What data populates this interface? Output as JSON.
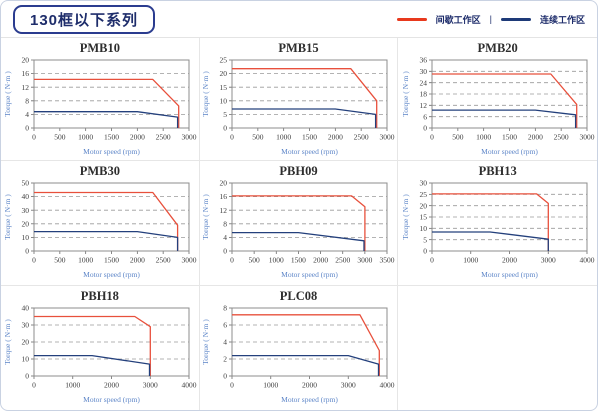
{
  "page": {
    "title_badge": "130框以下系列",
    "legend": [
      {
        "label": "间歇工作区",
        "color": "#e8391d"
      },
      {
        "label": "连续工作区",
        "color": "#1e3a78"
      }
    ],
    "legend_separator": "|"
  },
  "chart_data": [
    {
      "type": "line",
      "title": "PMB10",
      "xlabel": "Motor speed (rpm)",
      "ylabel": "Torque ( N·m )",
      "xlim": [
        0,
        3000
      ],
      "xstep": 500,
      "ylim": [
        0,
        20
      ],
      "ystep": 4,
      "grid": "dashed-horizontal",
      "legend_position": "none",
      "series": [
        {
          "name": "间歇工作区",
          "color": "#e8503c",
          "points": [
            [
              0,
              14.3
            ],
            [
              2300,
              14.3
            ],
            [
              2800,
              6.5
            ],
            [
              2800,
              0
            ]
          ]
        },
        {
          "name": "连续工作区",
          "color": "#24407c",
          "points": [
            [
              0,
              4.8
            ],
            [
              2000,
              4.8
            ],
            [
              2780,
              3.2
            ],
            [
              2780,
              0
            ]
          ]
        }
      ]
    },
    {
      "type": "line",
      "title": "PMB15",
      "xlabel": "Motor speed (rpm)",
      "ylabel": "Torque ( N·m )",
      "xlim": [
        0,
        3000
      ],
      "xstep": 500,
      "ylim": [
        0,
        25
      ],
      "ystep": 5,
      "grid": "dashed-horizontal",
      "legend_position": "none",
      "series": [
        {
          "name": "间歇工作区",
          "color": "#e8503c",
          "points": [
            [
              0,
              21.8
            ],
            [
              2300,
              21.8
            ],
            [
              2800,
              10
            ],
            [
              2800,
              0
            ]
          ]
        },
        {
          "name": "连续工作区",
          "color": "#24407c",
          "points": [
            [
              0,
              7
            ],
            [
              2000,
              7
            ],
            [
              2780,
              5
            ],
            [
              2780,
              0
            ]
          ]
        }
      ]
    },
    {
      "type": "line",
      "title": "PMB20",
      "xlabel": "Motor speed (rpm)",
      "ylabel": "Torque ( N·m )",
      "xlim": [
        0,
        3000
      ],
      "xstep": 500,
      "ylim": [
        0,
        36
      ],
      "ystep": 6,
      "grid": "dashed-horizontal",
      "legend_position": "none",
      "series": [
        {
          "name": "间歇工作区",
          "color": "#e8503c",
          "points": [
            [
              0,
              28.6
            ],
            [
              2300,
              28.6
            ],
            [
              2800,
              12.5
            ],
            [
              2800,
              0
            ]
          ]
        },
        {
          "name": "连续工作区",
          "color": "#24407c",
          "points": [
            [
              0,
              9.5
            ],
            [
              2000,
              9.5
            ],
            [
              2780,
              7
            ],
            [
              2780,
              0
            ]
          ]
        }
      ]
    },
    {
      "type": "line",
      "title": "PMB30",
      "xlabel": "Motor speed (rpm)",
      "ylabel": "Torque ( N·m )",
      "xlim": [
        0,
        3000
      ],
      "xstep": 500,
      "ylim": [
        0,
        50
      ],
      "ystep": 10,
      "grid": "dashed-horizontal",
      "legend_position": "none",
      "series": [
        {
          "name": "间歇工作区",
          "color": "#e8503c",
          "points": [
            [
              0,
              43
            ],
            [
              2300,
              43
            ],
            [
              2780,
              19
            ],
            [
              2780,
              0
            ]
          ]
        },
        {
          "name": "连续工作区",
          "color": "#24407c",
          "points": [
            [
              0,
              14.3
            ],
            [
              2000,
              14.3
            ],
            [
              2780,
              10
            ],
            [
              2780,
              0
            ]
          ]
        }
      ]
    },
    {
      "type": "line",
      "title": "PBH09",
      "xlabel": "Motor speed (rpm)",
      "ylabel": "Torque ( N·m )",
      "xlim": [
        0,
        3500
      ],
      "xstep": 500,
      "ylim": [
        0,
        20
      ],
      "ystep": 4,
      "grid": "dashed-horizontal",
      "legend_position": "none",
      "series": [
        {
          "name": "间歇工作区",
          "color": "#e8503c",
          "points": [
            [
              0,
              16.2
            ],
            [
              2700,
              16.2
            ],
            [
              3000,
              13
            ],
            [
              3000,
              0
            ]
          ]
        },
        {
          "name": "连续工作区",
          "color": "#24407c",
          "points": [
            [
              0,
              5.4
            ],
            [
              1500,
              5.4
            ],
            [
              2980,
              3
            ],
            [
              2980,
              0
            ]
          ]
        }
      ]
    },
    {
      "type": "line",
      "title": "PBH13",
      "xlabel": "Motor speed (rpm)",
      "ylabel": "Torque ( N·m )",
      "xlim": [
        0,
        4000
      ],
      "xstep": 1000,
      "ylim": [
        0,
        30
      ],
      "ystep": 5,
      "grid": "dashed-horizontal",
      "legend_position": "none",
      "series": [
        {
          "name": "间歇工作区",
          "color": "#e8503c",
          "points": [
            [
              0,
              25.2
            ],
            [
              2700,
              25.2
            ],
            [
              3000,
              21
            ],
            [
              3000,
              0
            ]
          ]
        },
        {
          "name": "连续工作区",
          "color": "#24407c",
          "points": [
            [
              0,
              8.4
            ],
            [
              1500,
              8.4
            ],
            [
              3000,
              5.2
            ],
            [
              3000,
              0
            ]
          ]
        }
      ]
    },
    {
      "type": "line",
      "title": "PBH18",
      "xlabel": "Motor speed (rpm)",
      "ylabel": "Torque ( N·m )",
      "xlim": [
        0,
        4000
      ],
      "xstep": 1000,
      "ylim": [
        0,
        40
      ],
      "ystep": 10,
      "grid": "dashed-horizontal",
      "legend_position": "none",
      "series": [
        {
          "name": "间歇工作区",
          "color": "#e8503c",
          "points": [
            [
              0,
              35
            ],
            [
              2600,
              35
            ],
            [
              3000,
              29
            ],
            [
              3000,
              0
            ]
          ]
        },
        {
          "name": "连续工作区",
          "color": "#24407c",
          "points": [
            [
              0,
              12
            ],
            [
              1500,
              12
            ],
            [
              2980,
              7
            ],
            [
              2980,
              0
            ]
          ]
        }
      ]
    },
    {
      "type": "line",
      "title": "PLC08",
      "xlabel": "Motor speed (rpm)",
      "ylabel": "Torque ( N·m )",
      "xlim": [
        0,
        4000
      ],
      "xstep": 1000,
      "ylim": [
        0,
        8
      ],
      "ystep": 2,
      "grid": "dashed-horizontal",
      "legend_position": "none",
      "series": [
        {
          "name": "间歇工作区",
          "color": "#e8503c",
          "points": [
            [
              0,
              7.2
            ],
            [
              3300,
              7.2
            ],
            [
              3800,
              3
            ],
            [
              3800,
              0
            ]
          ]
        },
        {
          "name": "连续工作区",
          "color": "#24407c",
          "points": [
            [
              0,
              2.4
            ],
            [
              3000,
              2.4
            ],
            [
              3780,
              1.4
            ],
            [
              3780,
              0
            ]
          ]
        }
      ]
    }
  ]
}
